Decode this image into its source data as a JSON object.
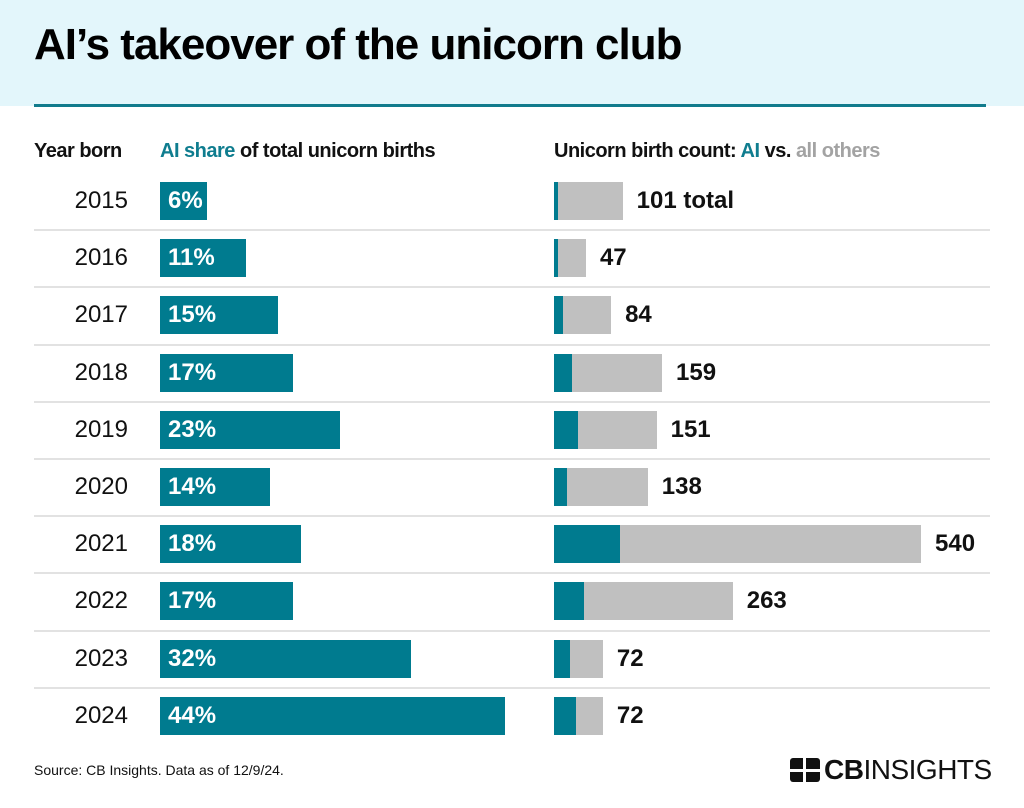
{
  "title": "AI’s takeover of the unicorn club",
  "source": "Source: CB Insights. Data as of 12/9/24.",
  "logo_text": "CBINSIGHTS",
  "colors": {
    "ai": "#007b8f",
    "others": "#c0c0c0",
    "header_bg": "#e3f6fb"
  },
  "chart_data": [
    {
      "type": "bar",
      "orientation": "horizontal",
      "title_parts": {
        "highlight": "AI share",
        "rest": " of total unicorn births"
      },
      "row_header": "Year born",
      "categories": [
        "2015",
        "2016",
        "2017",
        "2018",
        "2019",
        "2020",
        "2021",
        "2022",
        "2023",
        "2024"
      ],
      "values": [
        6,
        11,
        15,
        17,
        23,
        14,
        18,
        17,
        32,
        44
      ],
      "labels": [
        "6%",
        "11%",
        "15%",
        "17%",
        "23%",
        "14%",
        "18%",
        "17%",
        "32%",
        "44%"
      ],
      "unit": "%"
    },
    {
      "type": "bar",
      "orientation": "horizontal",
      "stacked": true,
      "title_parts": {
        "prefix": "Unicorn birth count: ",
        "ai": "AI",
        "mid": " vs. ",
        "others": "all others"
      },
      "categories": [
        "2015",
        "2016",
        "2017",
        "2018",
        "2019",
        "2020",
        "2021",
        "2022",
        "2023",
        "2024"
      ],
      "totals": [
        101,
        47,
        84,
        159,
        151,
        138,
        540,
        263,
        72,
        72
      ],
      "labels": [
        "101 total",
        "47",
        "84",
        "159",
        "151",
        "138",
        "540",
        "263",
        "72",
        "72"
      ]
    }
  ]
}
